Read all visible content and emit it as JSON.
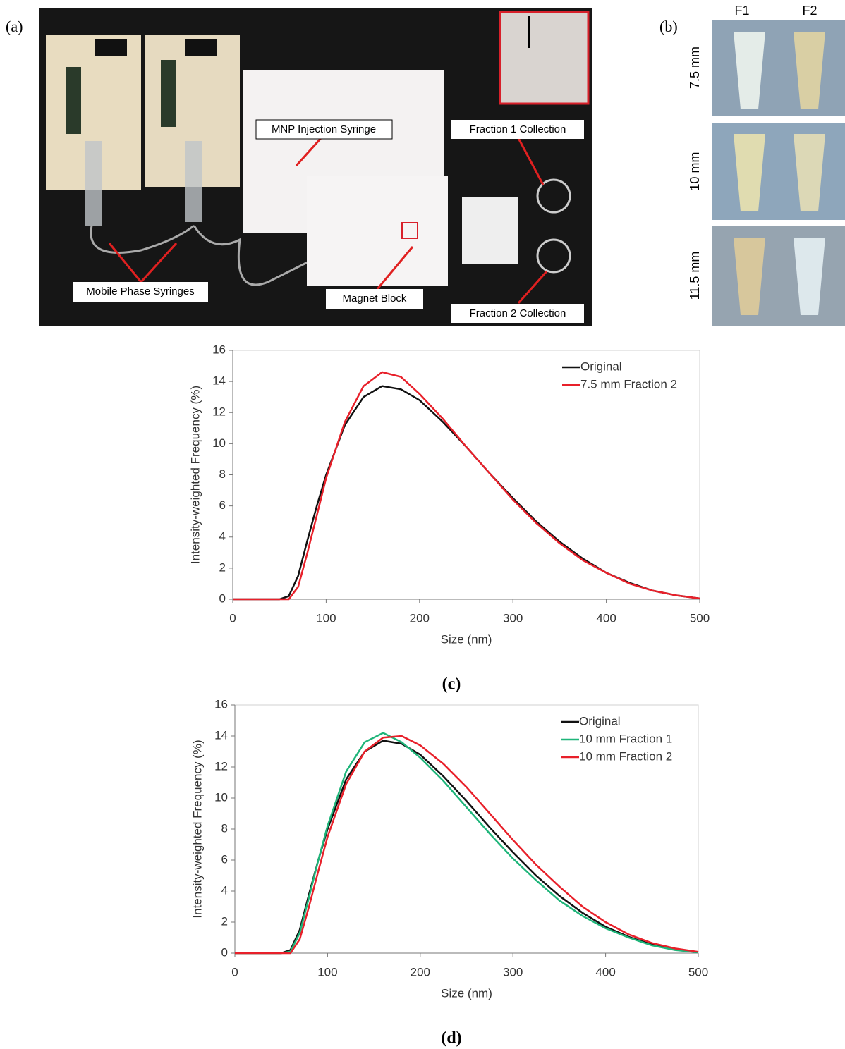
{
  "panel_a": {
    "label": "(a)",
    "callouts": [
      "MNP Injection Syringe",
      "Fraction 1 Collection",
      "Mobile Phase Syringes",
      "Magnet Block",
      "Fraction 2 Collection"
    ]
  },
  "panel_b": {
    "label": "(b)",
    "columns": [
      "F1",
      "F2"
    ],
    "rows": [
      "7.5 mm",
      "10 mm",
      "11.5 mm"
    ]
  },
  "chart_data": [
    {
      "type": "line",
      "caption": "(c)",
      "xlabel": "Size (nm)",
      "ylabel": "Intensity-weighted Frequency (%)",
      "x": [
        0,
        50,
        60,
        70,
        80,
        90,
        100,
        120,
        140,
        160,
        180,
        200,
        225,
        250,
        275,
        300,
        325,
        350,
        375,
        400,
        425,
        450,
        475,
        500
      ],
      "series": [
        {
          "name": "Original",
          "color": "#111111",
          "values": [
            0,
            0,
            0.2,
            1.5,
            3.8,
            6,
            8,
            11.2,
            13,
            13.7,
            13.5,
            12.8,
            11.4,
            9.8,
            8.1,
            6.5,
            5,
            3.7,
            2.6,
            1.7,
            1.05,
            0.55,
            0.25,
            0.05
          ]
        },
        {
          "name": "7.5 mm Fraction 2",
          "color": "#e8202a",
          "values": [
            0,
            0,
            0,
            0.8,
            3,
            5.4,
            7.8,
            11.4,
            13.7,
            14.6,
            14.3,
            13.2,
            11.6,
            9.8,
            8.1,
            6.4,
            4.9,
            3.6,
            2.5,
            1.7,
            1.0,
            0.55,
            0.25,
            0.05
          ]
        }
      ],
      "xlim": [
        0,
        500
      ],
      "ylim": [
        0,
        16
      ],
      "xticks": [
        0,
        100,
        200,
        300,
        400,
        500
      ],
      "yticks": [
        0,
        2,
        4,
        6,
        8,
        10,
        12,
        14,
        16
      ],
      "legend": "upper right"
    },
    {
      "type": "line",
      "caption": "(d)",
      "xlabel": "Size (nm)",
      "ylabel": "Intensity-weighted Frequency (%)",
      "x": [
        0,
        50,
        60,
        70,
        80,
        90,
        100,
        120,
        140,
        160,
        180,
        200,
        225,
        250,
        275,
        300,
        325,
        350,
        375,
        400,
        425,
        450,
        475,
        500
      ],
      "series": [
        {
          "name": "Original",
          "color": "#111111",
          "values": [
            0,
            0,
            0.2,
            1.5,
            3.8,
            6,
            8,
            11.2,
            13,
            13.7,
            13.5,
            12.8,
            11.4,
            9.8,
            8.1,
            6.5,
            5,
            3.7,
            2.6,
            1.7,
            1.05,
            0.55,
            0.25,
            0.05
          ]
        },
        {
          "name": "10 mm Fraction 1",
          "color": "#1fb57a",
          "values": [
            0,
            0,
            0.1,
            1.3,
            3.6,
            6,
            8.2,
            11.7,
            13.6,
            14.2,
            13.6,
            12.6,
            11.1,
            9.4,
            7.7,
            6.1,
            4.7,
            3.4,
            2.4,
            1.6,
            1.0,
            0.5,
            0.2,
            0.05
          ]
        },
        {
          "name": "10 mm Fraction 2",
          "color": "#e8202a",
          "values": [
            0,
            0,
            0,
            0.9,
            3,
            5.3,
            7.5,
            10.9,
            13,
            13.9,
            14,
            13.4,
            12.2,
            10.7,
            9,
            7.3,
            5.7,
            4.3,
            3.0,
            2.0,
            1.2,
            0.65,
            0.3,
            0.08
          ]
        }
      ],
      "xlim": [
        0,
        500
      ],
      "ylim": [
        0,
        16
      ],
      "xticks": [
        0,
        100,
        200,
        300,
        400,
        500
      ],
      "yticks": [
        0,
        2,
        4,
        6,
        8,
        10,
        12,
        14,
        16
      ],
      "legend": "upper right"
    }
  ]
}
